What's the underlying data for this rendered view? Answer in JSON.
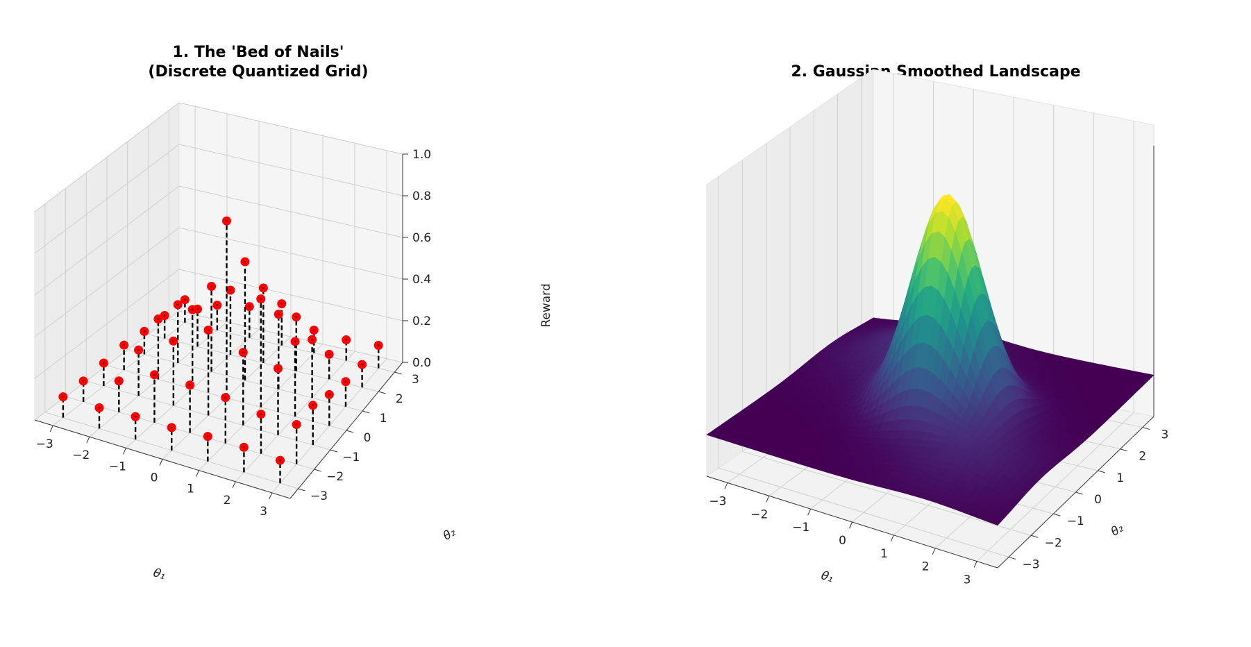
{
  "chart_data": [
    {
      "type": "stem3d",
      "title_lines": [
        "1. The 'Bed of Nails'",
        "(Discrete Quantized Grid)"
      ],
      "xlabel": "θ₁",
      "ylabel": "θ₂",
      "zlabel": "Reward",
      "xticks": [
        "−3",
        "−2",
        "−1",
        "0",
        "1",
        "2",
        "3"
      ],
      "yticks": [
        "−3",
        "−2",
        "−1",
        "0",
        "1",
        "2",
        "3"
      ],
      "zticks": [
        "0.0",
        "0.2",
        "0.4",
        "0.6",
        "0.8",
        "1.0"
      ],
      "xlim": [
        -3.5,
        3.5
      ],
      "ylim": [
        -3.5,
        3.5
      ],
      "zlim": [
        0,
        1.0
      ],
      "grid_x": [
        -3,
        -2,
        -1,
        0,
        1,
        2,
        3
      ],
      "grid_y": [
        -3,
        -2,
        -1,
        0,
        1,
        2,
        3
      ],
      "z_values": [
        [
          0.1,
          0.1,
          0.11,
          0.12,
          0.11,
          0.11,
          0.11
        ],
        [
          0.1,
          0.15,
          0.22,
          0.29,
          0.28,
          0.18,
          0.12
        ],
        [
          0.11,
          0.23,
          0.31,
          0.38,
          0.41,
          0.31,
          0.15
        ],
        [
          0.11,
          0.23,
          0.41,
          0.85,
          0.57,
          0.36,
          0.2
        ],
        [
          0.12,
          0.22,
          0.35,
          0.52,
          0.36,
          0.26,
          0.11
        ],
        [
          0.12,
          0.19,
          0.32,
          0.36,
          0.28,
          0.12,
          0.1
        ],
        [
          0.11,
          0.19,
          0.19,
          0.15,
          0.12,
          0.11,
          0.11
        ]
      ],
      "marker_color": "#ff0000",
      "stem_color": "#000000",
      "grid": true
    },
    {
      "type": "surface3d",
      "title": "2. Gaussian Smoothed Landscape",
      "xlabel": "θ₁",
      "ylabel": "θ₂",
      "xticks": [
        "−3",
        "−2",
        "−1",
        "0",
        "1",
        "2",
        "3"
      ],
      "yticks": [
        "−3",
        "−2",
        "−1",
        "0",
        "1",
        "2",
        "3"
      ],
      "xlim": [
        -3.5,
        3.5
      ],
      "ylim": [
        -3.5,
        3.5
      ],
      "colormap": "viridis",
      "grid": true
    }
  ]
}
